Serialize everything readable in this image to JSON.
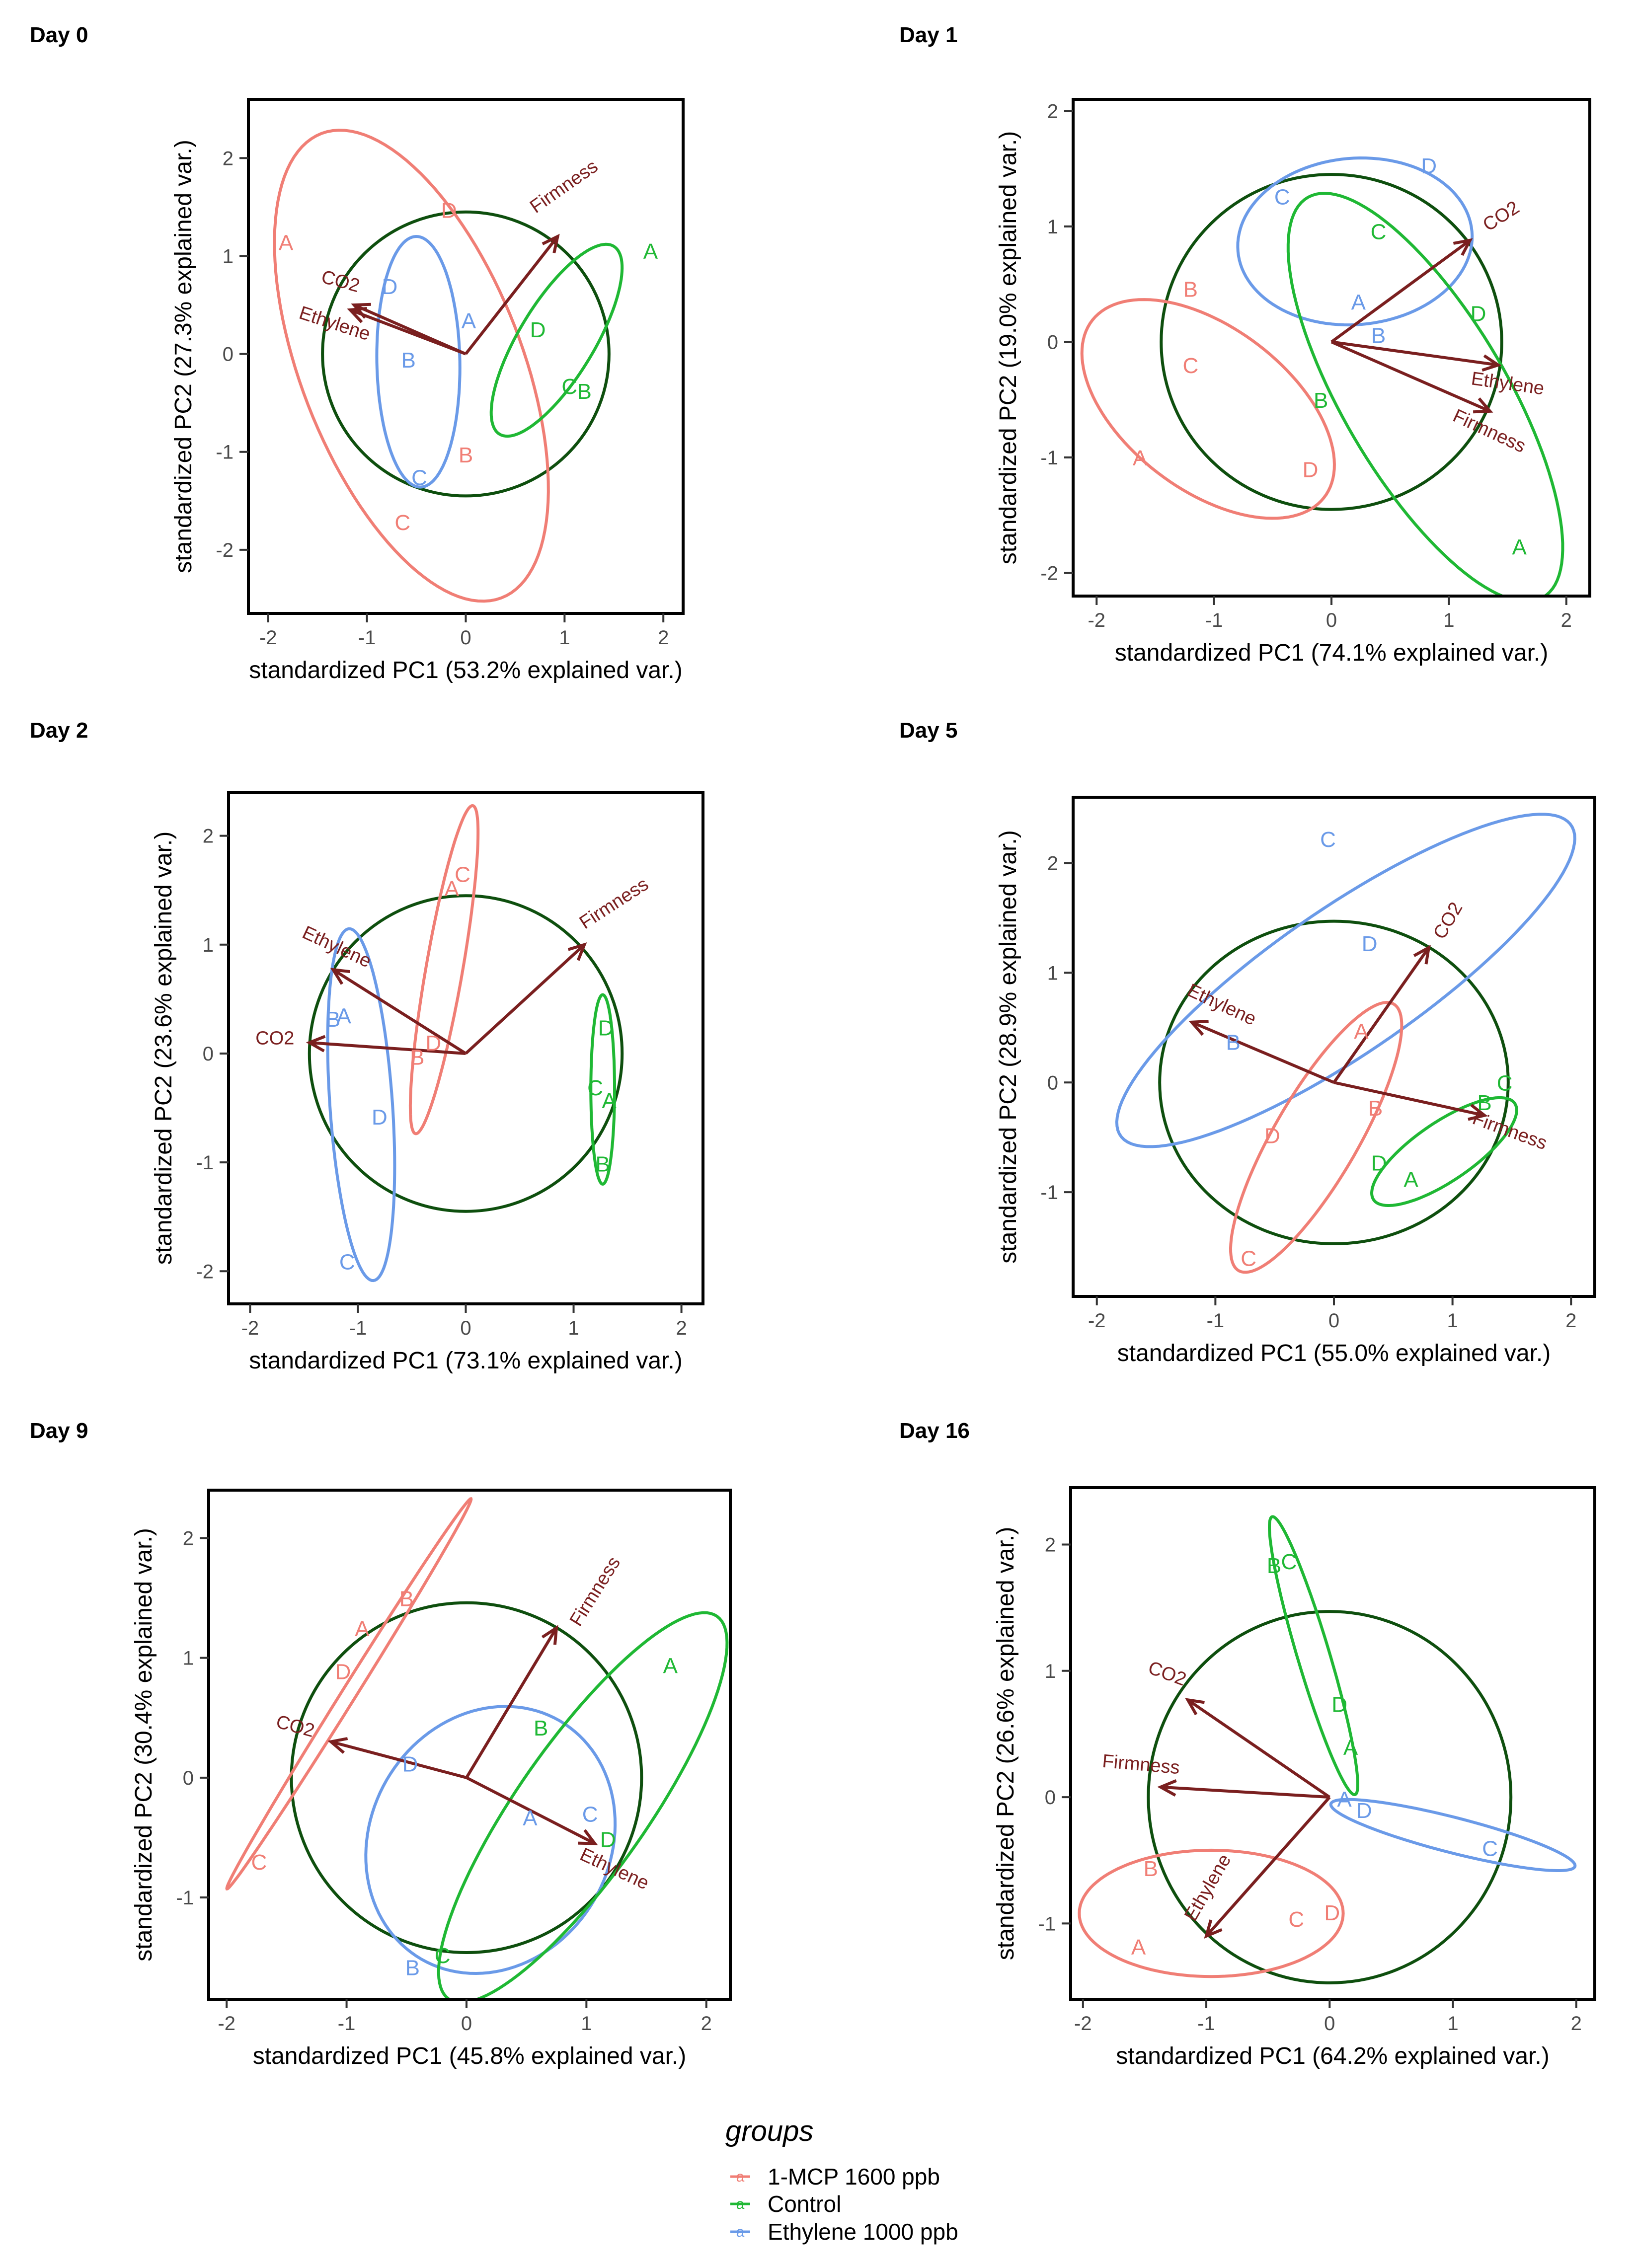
{
  "colors": {
    "mcp": "#F07E75",
    "control": "#1FB834",
    "ethylene": "#6A9AE8",
    "arrow": "#7A1F1F",
    "circle": "#0E4F0E",
    "text": "#000000",
    "axis_text": "#4A4A4A"
  },
  "legend": {
    "title": "groups",
    "items": [
      {
        "label": "1-MCP 1600 ppb",
        "color_key": "mcp"
      },
      {
        "label": "Control",
        "color_key": "control"
      },
      {
        "label": "Ethylene 1000 ppb",
        "color_key": "ethylene"
      }
    ]
  },
  "chart_data": [
    {
      "type": "scatter",
      "title": "Day 0",
      "xlabel": "standardized PC1 (53.2% explained var.)",
      "ylabel": "standardized PC2 (27.3% explained var.)",
      "xlim": [
        -2.2,
        2.2
      ],
      "ylim": [
        -2.65,
        2.6
      ],
      "xticks": [
        -2,
        -1,
        0,
        1,
        2
      ],
      "yticks": [
        -2,
        -1,
        0,
        1,
        2
      ],
      "circle_radius": 1.45,
      "points": [
        {
          "label": "A",
          "group": "mcp",
          "x": -1.82,
          "y": 1.12
        },
        {
          "label": "D",
          "group": "mcp",
          "x": -0.17,
          "y": 1.45
        },
        {
          "label": "B",
          "group": "mcp",
          "x": 0.0,
          "y": -1.05
        },
        {
          "label": "C",
          "group": "mcp",
          "x": -0.64,
          "y": -1.74
        },
        {
          "label": "D",
          "group": "ethylene",
          "x": -0.77,
          "y": 0.67
        },
        {
          "label": "A",
          "group": "ethylene",
          "x": 0.03,
          "y": 0.32
        },
        {
          "label": "B",
          "group": "ethylene",
          "x": -0.58,
          "y": -0.08
        },
        {
          "label": "C",
          "group": "ethylene",
          "x": -0.47,
          "y": -1.28
        },
        {
          "label": "A",
          "group": "control",
          "x": 1.87,
          "y": 1.03
        },
        {
          "label": "D",
          "group": "control",
          "x": 0.73,
          "y": 0.23
        },
        {
          "label": "C",
          "group": "control",
          "x": 1.05,
          "y": -0.35
        },
        {
          "label": "B",
          "group": "control",
          "x": 1.2,
          "y": -0.4
        }
      ],
      "ellipses": [
        {
          "group": "mcp",
          "cx": -0.55,
          "cy": -0.12,
          "a": 2.54,
          "b": 1.12,
          "angle": -69
        },
        {
          "group": "ethylene",
          "cx": -0.48,
          "cy": -0.08,
          "a": 1.28,
          "b": 0.42,
          "angle": -89
        },
        {
          "group": "control",
          "cx": 0.92,
          "cy": 0.14,
          "a": 1.12,
          "b": 0.38,
          "angle": 59
        }
      ],
      "arrows": [
        {
          "label": "Firmness",
          "x": 0.93,
          "y": 1.2,
          "lx": 1.0,
          "ly": 1.7,
          "rot": -35
        },
        {
          "label": "CO2",
          "x": -1.13,
          "y": 0.5,
          "lx": -1.27,
          "ly": 0.73,
          "rot": 15
        },
        {
          "label": "Ethylene",
          "x": -1.17,
          "y": 0.45,
          "lx": -1.33,
          "ly": 0.3,
          "rot": 18
        }
      ]
    },
    {
      "type": "scatter",
      "title": "Day 1",
      "xlabel": "standardized PC1 (74.1% explained var.)",
      "ylabel": "standardized PC2 (19.0% explained var.)",
      "xlim": [
        -2.2,
        2.2
      ],
      "ylim": [
        -2.2,
        2.1
      ],
      "xticks": [
        -2,
        -1,
        0,
        1,
        2
      ],
      "yticks": [
        -2,
        -1,
        0,
        1,
        2
      ],
      "circle_radius": 1.45,
      "points": [
        {
          "label": "B",
          "group": "mcp",
          "x": -1.2,
          "y": 0.44
        },
        {
          "label": "C",
          "group": "mcp",
          "x": -1.2,
          "y": -0.22
        },
        {
          "label": "A",
          "group": "mcp",
          "x": -1.63,
          "y": -1.02
        },
        {
          "label": "D",
          "group": "mcp",
          "x": -0.18,
          "y": -1.12
        },
        {
          "label": "C",
          "group": "ethylene",
          "x": -0.42,
          "y": 1.24
        },
        {
          "label": "D",
          "group": "ethylene",
          "x": 0.83,
          "y": 1.51
        },
        {
          "label": "A",
          "group": "ethylene",
          "x": 0.23,
          "y": 0.33
        },
        {
          "label": "B",
          "group": "ethylene",
          "x": 0.4,
          "y": 0.04
        },
        {
          "label": "C",
          "group": "control",
          "x": 0.4,
          "y": 0.94
        },
        {
          "label": "D",
          "group": "control",
          "x": 1.25,
          "y": 0.23
        },
        {
          "label": "B",
          "group": "control",
          "x": -0.09,
          "y": -0.52
        },
        {
          "label": "A",
          "group": "control",
          "x": 1.6,
          "y": -1.79
        }
      ],
      "ellipses": [
        {
          "group": "mcp",
          "cx": -1.05,
          "cy": -0.58,
          "a": 1.25,
          "b": 0.7,
          "angle": -38
        },
        {
          "group": "ethylene",
          "cx": 0.2,
          "cy": 0.87,
          "a": 1.0,
          "b": 0.72,
          "angle": 5
        },
        {
          "group": "control",
          "cx": 0.8,
          "cy": -0.48,
          "a": 2.0,
          "b": 0.7,
          "angle": -60
        }
      ],
      "arrows": [
        {
          "label": "CO2",
          "x": 1.18,
          "y": 0.88,
          "lx": 1.45,
          "ly": 1.08,
          "rot": -33
        },
        {
          "label": "Ethylene",
          "x": 1.42,
          "y": -0.2,
          "lx": 1.5,
          "ly": -0.37,
          "rot": 8
        },
        {
          "label": "Firmness",
          "x": 1.35,
          "y": -0.6,
          "lx": 1.34,
          "ly": -0.78,
          "rot": 25
        }
      ]
    },
    {
      "type": "scatter",
      "title": "Day 2",
      "xlabel": "standardized PC1 (73.1% explained var.)",
      "ylabel": "standardized PC2 (23.6% explained var.)",
      "xlim": [
        -2.2,
        2.2
      ],
      "ylim": [
        -2.3,
        2.4
      ],
      "xticks": [
        -2,
        -1,
        0,
        1,
        2
      ],
      "yticks": [
        -2,
        -1,
        0,
        1,
        2
      ],
      "circle_radius": 1.45,
      "points": [
        {
          "label": "C",
          "group": "mcp",
          "x": -0.03,
          "y": 1.63
        },
        {
          "label": "A",
          "group": "mcp",
          "x": -0.13,
          "y": 1.5
        },
        {
          "label": "D",
          "group": "mcp",
          "x": -0.3,
          "y": 0.08
        },
        {
          "label": "B",
          "group": "mcp",
          "x": -0.45,
          "y": -0.05
        },
        {
          "label": "B",
          "group": "ethylene",
          "x": -1.23,
          "y": 0.3
        },
        {
          "label": "A",
          "group": "ethylene",
          "x": -1.13,
          "y": 0.33
        },
        {
          "label": "D",
          "group": "ethylene",
          "x": -0.8,
          "y": -0.6
        },
        {
          "label": "C",
          "group": "ethylene",
          "x": -1.1,
          "y": -1.93
        },
        {
          "label": "D",
          "group": "control",
          "x": 1.3,
          "y": 0.22
        },
        {
          "label": "C",
          "group": "control",
          "x": 1.2,
          "y": -0.33
        },
        {
          "label": "A",
          "group": "control",
          "x": 1.33,
          "y": -0.45
        },
        {
          "label": "B",
          "group": "control",
          "x": 1.27,
          "y": -1.03
        }
      ],
      "ellipses": [
        {
          "group": "mcp",
          "cx": -0.2,
          "cy": 0.77,
          "a": 1.53,
          "b": 0.17,
          "angle": 80
        },
        {
          "group": "ethylene",
          "cx": -0.97,
          "cy": -0.47,
          "a": 1.62,
          "b": 0.29,
          "angle": -86
        },
        {
          "group": "control",
          "cx": 1.27,
          "cy": -0.33,
          "a": 0.87,
          "b": 0.11,
          "angle": 90
        }
      ],
      "arrows": [
        {
          "label": "Firmness",
          "x": 1.1,
          "y": 1.0,
          "lx": 1.38,
          "ly": 1.37,
          "rot": -33
        },
        {
          "label": "Ethylene",
          "x": -1.23,
          "y": 0.77,
          "lx": -1.2,
          "ly": 0.97,
          "rot": 25
        },
        {
          "label": "CO2",
          "x": -1.45,
          "y": 0.1,
          "lx": -1.77,
          "ly": 0.13,
          "rot": 0
        }
      ]
    },
    {
      "type": "scatter",
      "title": "Day 5",
      "xlabel": "standardized PC1 (55.0% explained var.)",
      "ylabel": "standardized PC2 (28.9% explained var.)",
      "xlim": [
        -2.2,
        2.2
      ],
      "ylim": [
        -1.95,
        2.6
      ],
      "xticks": [
        -2,
        -1,
        0,
        1,
        2
      ],
      "yticks": [
        -1,
        0,
        1,
        2
      ],
      "circle_radius": 1.47,
      "points": [
        {
          "label": "C",
          "group": "ethylene",
          "x": -0.05,
          "y": 2.2
        },
        {
          "label": "D",
          "group": "ethylene",
          "x": 0.3,
          "y": 1.25
        },
        {
          "label": "B",
          "group": "ethylene",
          "x": -0.85,
          "y": 0.35
        },
        {
          "label": "A",
          "group": "mcp",
          "x": 0.23,
          "y": 0.45
        },
        {
          "label": "B",
          "group": "mcp",
          "x": 0.35,
          "y": -0.25
        },
        {
          "label": "D",
          "group": "mcp",
          "x": -0.52,
          "y": -0.5
        },
        {
          "label": "C",
          "group": "mcp",
          "x": -0.72,
          "y": -1.62
        },
        {
          "label": "C",
          "group": "control",
          "x": 1.44,
          "y": -0.02
        },
        {
          "label": "B",
          "group": "control",
          "x": 1.27,
          "y": -0.2
        },
        {
          "label": "D",
          "group": "control",
          "x": 0.38,
          "y": -0.75
        },
        {
          "label": "A",
          "group": "control",
          "x": 0.65,
          "y": -0.9
        }
      ],
      "ellipses": [
        {
          "group": "ethylene",
          "cx": 0.1,
          "cy": 0.93,
          "a": 2.37,
          "b": 0.64,
          "angle": 37
        },
        {
          "group": "mcp",
          "cx": -0.15,
          "cy": -0.5,
          "a": 1.38,
          "b": 0.36,
          "angle": 62
        },
        {
          "group": "control",
          "cx": 0.93,
          "cy": -0.63,
          "a": 0.74,
          "b": 0.26,
          "angle": 37
        }
      ],
      "arrows": [
        {
          "label": "CO2",
          "x": 0.8,
          "y": 1.23,
          "lx": 0.97,
          "ly": 1.47,
          "rot": -60
        },
        {
          "label": "Ethylene",
          "x": -1.2,
          "y": 0.55,
          "lx": -0.95,
          "ly": 0.7,
          "rot": 25
        },
        {
          "label": "Firmness",
          "x": 1.27,
          "y": -0.3,
          "lx": 1.48,
          "ly": -0.45,
          "rot": 20
        }
      ]
    },
    {
      "type": "scatter",
      "title": "Day 9",
      "xlabel": "standardized PC1 (45.8% explained var.)",
      "ylabel": "standardized PC2 (30.4% explained var.)",
      "xlim": [
        -2.15,
        2.2
      ],
      "ylim": [
        -1.85,
        2.4
      ],
      "xticks": [
        -2,
        -1,
        0,
        1,
        2
      ],
      "yticks": [
        -1,
        0,
        1,
        2
      ],
      "circle_radius": 1.46,
      "points": [
        {
          "label": "B",
          "group": "mcp",
          "x": -0.5,
          "y": 1.48
        },
        {
          "label": "A",
          "group": "mcp",
          "x": -0.87,
          "y": 1.23
        },
        {
          "label": "D",
          "group": "mcp",
          "x": -1.03,
          "y": 0.87
        },
        {
          "label": "C",
          "group": "mcp",
          "x": -1.73,
          "y": -0.72
        },
        {
          "label": "D",
          "group": "ethylene",
          "x": -0.47,
          "y": 0.1
        },
        {
          "label": "A",
          "group": "ethylene",
          "x": 0.53,
          "y": -0.35
        },
        {
          "label": "C",
          "group": "ethylene",
          "x": 1.03,
          "y": -0.32
        },
        {
          "label": "B",
          "group": "ethylene",
          "x": -0.45,
          "y": -1.6
        },
        {
          "label": "A",
          "group": "control",
          "x": 1.7,
          "y": 0.92
        },
        {
          "label": "B",
          "group": "control",
          "x": 0.62,
          "y": 0.4
        },
        {
          "label": "D",
          "group": "control",
          "x": 1.18,
          "y": -0.53
        },
        {
          "label": "C",
          "group": "control",
          "x": -0.2,
          "y": -1.5
        }
      ],
      "ellipses": [
        {
          "group": "mcp",
          "cx": -0.98,
          "cy": 0.7,
          "a": 1.92,
          "b": 0.06,
          "angle": 58
        },
        {
          "group": "ethylene",
          "cx": 0.2,
          "cy": -0.52,
          "a": 1.15,
          "b": 1.0,
          "angle": 60
        },
        {
          "group": "control",
          "cx": 0.97,
          "cy": -0.25,
          "a": 1.95,
          "b": 0.54,
          "angle": 55
        }
      ],
      "arrows": [
        {
          "label": "Firmness",
          "x": 0.75,
          "y": 1.25,
          "lx": 1.08,
          "ly": 1.55,
          "rot": -58
        },
        {
          "label": "CO2",
          "x": -1.13,
          "y": 0.3,
          "lx": -1.43,
          "ly": 0.42,
          "rot": 15
        },
        {
          "label": "Ethylene",
          "x": 1.07,
          "y": -0.55,
          "lx": 1.23,
          "ly": -0.77,
          "rot": 25
        }
      ]
    },
    {
      "type": "scatter",
      "title": "Day 16",
      "xlabel": "standardized PC1 (64.2% explained var.)",
      "ylabel": "standardized PC2 (26.6% explained var.)",
      "xlim": [
        -2.1,
        2.15
      ],
      "ylim": [
        -1.6,
        2.45
      ],
      "xticks": [
        -2,
        -1,
        0,
        1,
        2
      ],
      "yticks": [
        -1,
        0,
        1,
        2
      ],
      "circle_radius": 1.47,
      "points": [
        {
          "label": "B",
          "group": "control",
          "x": -0.45,
          "y": 1.82
        },
        {
          "label": "C",
          "group": "control",
          "x": -0.33,
          "y": 1.85
        },
        {
          "label": "D",
          "group": "control",
          "x": 0.08,
          "y": 0.72
        },
        {
          "label": "A",
          "group": "control",
          "x": 0.17,
          "y": 0.38
        },
        {
          "label": "A",
          "group": "ethylene",
          "x": 0.12,
          "y": -0.03
        },
        {
          "label": "D",
          "group": "ethylene",
          "x": 0.28,
          "y": -0.12
        },
        {
          "label": "C",
          "group": "ethylene",
          "x": 1.3,
          "y": -0.42
        },
        {
          "label": "B",
          "group": "mcp",
          "x": -1.45,
          "y": -0.58
        },
        {
          "label": "A",
          "group": "mcp",
          "x": -1.55,
          "y": -1.2
        },
        {
          "label": "C",
          "group": "mcp",
          "x": -0.27,
          "y": -0.98
        },
        {
          "label": "D",
          "group": "mcp",
          "x": 0.02,
          "y": -0.93
        }
      ],
      "ellipses": [
        {
          "group": "control",
          "cx": -0.13,
          "cy": 1.12,
          "a": 1.15,
          "b": 0.13,
          "angle": -73
        },
        {
          "group": "ethylene",
          "cx": 1.0,
          "cy": -0.3,
          "a": 1.02,
          "b": 0.14,
          "angle": -14
        },
        {
          "group": "mcp",
          "cx": -0.96,
          "cy": -0.92,
          "a": 1.07,
          "b": 0.5,
          "angle": 0
        }
      ],
      "arrows": [
        {
          "label": "CO2",
          "x": -1.15,
          "y": 0.77,
          "lx": -1.32,
          "ly": 0.97,
          "rot": 20
        },
        {
          "label": "Firmness",
          "x": -1.37,
          "y": 0.08,
          "lx": -1.53,
          "ly": 0.25,
          "rot": 5
        },
        {
          "label": "Ethylene",
          "x": -1.0,
          "y": -1.1,
          "lx": -0.98,
          "ly": -0.72,
          "rot": -60
        }
      ]
    }
  ]
}
